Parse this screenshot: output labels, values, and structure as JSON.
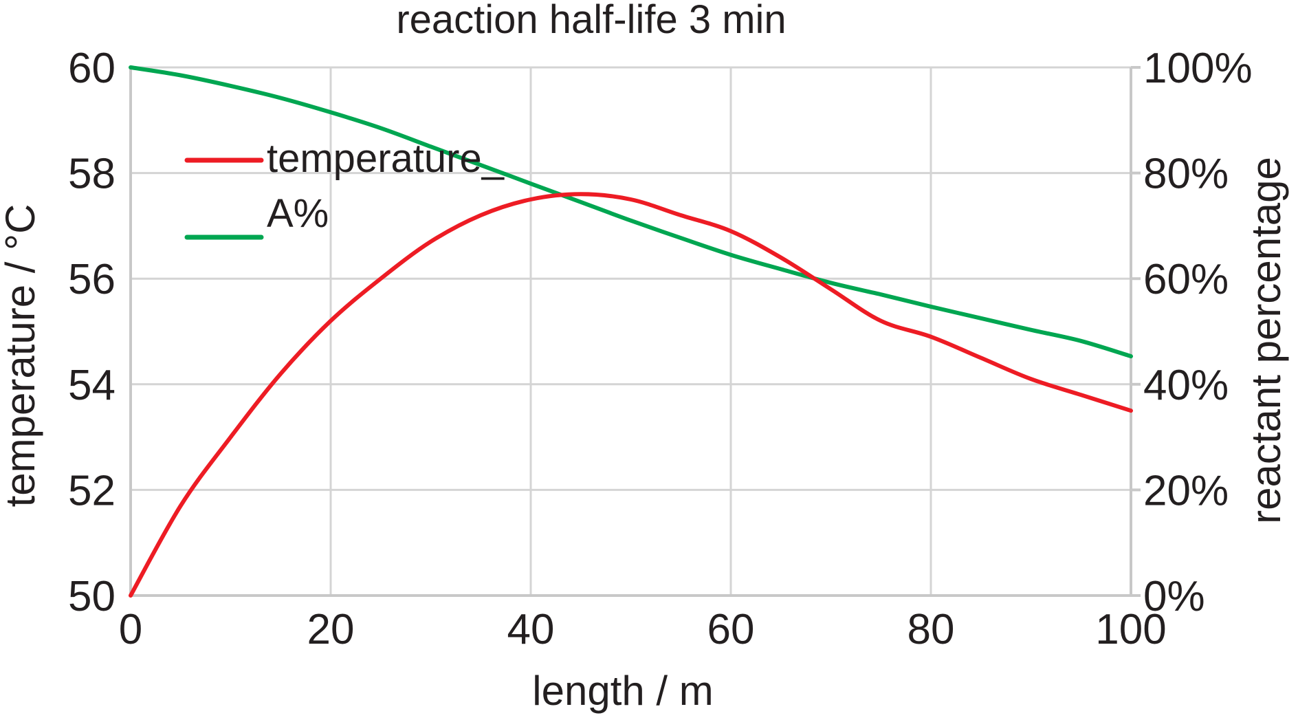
{
  "chart_data": {
    "type": "line",
    "title": "reaction half-life 3 min",
    "xlabel": "length / m",
    "ylabel": "temperature / °C",
    "y2label": "reactant percentage",
    "xlim": [
      0,
      100
    ],
    "ylim": [
      50,
      60
    ],
    "y2lim": [
      0,
      100
    ],
    "x_ticks": [
      0,
      20,
      40,
      60,
      80,
      100
    ],
    "x_tick_labels": [
      "0",
      "20",
      "40",
      "60",
      "80",
      "100"
    ],
    "y_ticks": [
      50,
      52,
      54,
      56,
      58,
      60
    ],
    "y_tick_labels": [
      "50",
      "52",
      "54",
      "56",
      "58",
      "60"
    ],
    "y2_ticks": [
      0,
      20,
      40,
      60,
      80,
      100
    ],
    "y2_tick_labels": [
      "0%",
      "20%",
      "40%",
      "60%",
      "80%",
      "100%"
    ],
    "grid": true,
    "legend_position": "top-left",
    "series": [
      {
        "name": "temperature",
        "axis": "left",
        "color": "#ed1c24",
        "x": [
          0,
          5,
          10,
          15,
          20,
          25,
          30,
          35,
          40,
          45,
          50,
          55,
          60,
          65,
          70,
          75,
          80,
          85,
          90,
          95,
          100
        ],
        "y": [
          50.0,
          51.7,
          53.0,
          54.2,
          55.2,
          56.0,
          56.7,
          57.2,
          57.5,
          57.6,
          57.5,
          57.2,
          56.9,
          56.4,
          55.8,
          55.2,
          54.9,
          54.5,
          54.1,
          53.8,
          53.5
        ]
      },
      {
        "name": "A%",
        "axis": "right",
        "color": "#00a651",
        "x": [
          0,
          5,
          10,
          15,
          20,
          25,
          30,
          35,
          40,
          45,
          50,
          55,
          60,
          65,
          70,
          75,
          80,
          85,
          90,
          95,
          100
        ],
        "y": [
          100,
          98.5,
          96.5,
          94.2,
          91.5,
          88.5,
          85.0,
          81.5,
          78.0,
          74.5,
          71.0,
          67.7,
          64.5,
          61.8,
          59.2,
          57.0,
          54.7,
          52.5,
          50.3,
          48.2,
          45.3
        ]
      }
    ],
    "legend_labels": [
      "temperature_",
      "A%"
    ]
  }
}
